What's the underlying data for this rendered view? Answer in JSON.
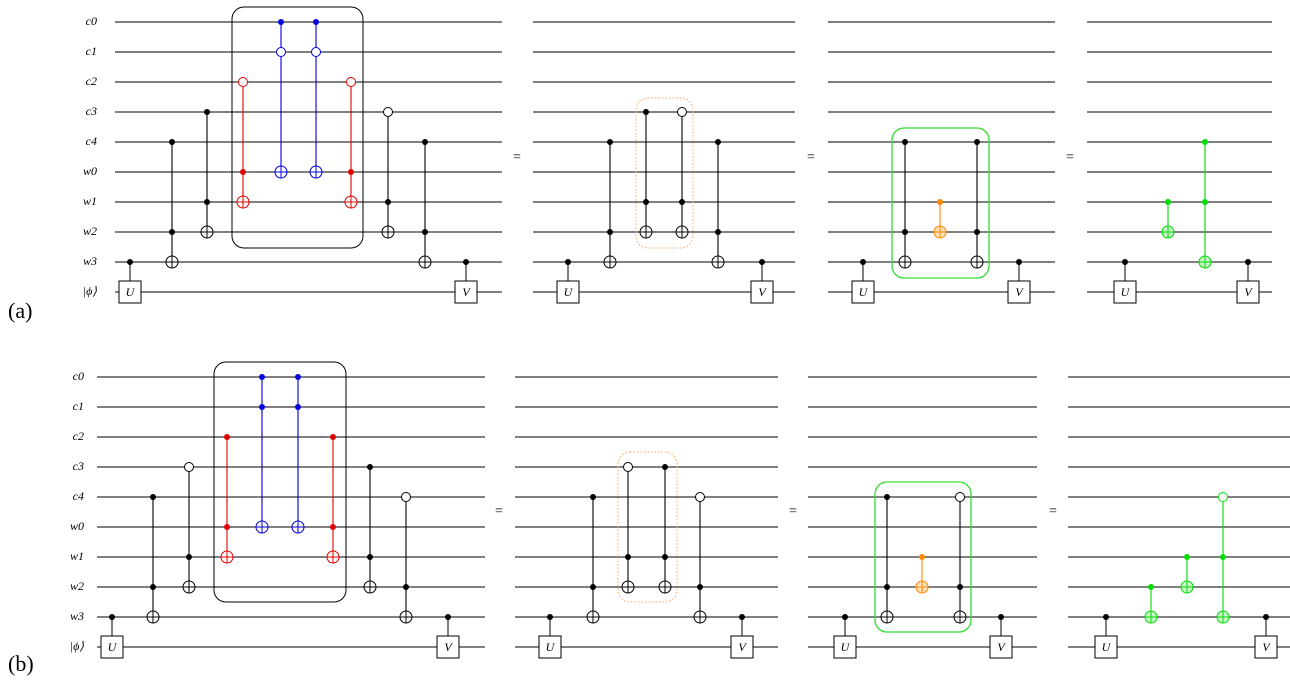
{
  "panels": [
    {
      "label": "(a)",
      "wire_labels": [
        "c0",
        "c1",
        "c2",
        "c3",
        "c4",
        "w0",
        "w1",
        "w2",
        "w3",
        "|ϕ⟩"
      ],
      "equals": [
        "=",
        "=",
        "="
      ],
      "circuits": [
        {
          "u": "U",
          "v": "V"
        },
        {
          "u": "U",
          "v": "V"
        },
        {
          "u": "U",
          "v": "V"
        },
        {
          "u": "U",
          "v": "V"
        }
      ]
    },
    {
      "label": "(b)",
      "wire_labels": [
        "c0",
        "c1",
        "c2",
        "c3",
        "c4",
        "w0",
        "w1",
        "w2",
        "w3",
        "|ϕ⟩"
      ],
      "equals": [
        "=",
        "=",
        "="
      ],
      "circuits": [
        {
          "u": "U",
          "v": "V"
        },
        {
          "u": "U",
          "v": "V"
        },
        {
          "u": "U",
          "v": "V"
        },
        {
          "u": "U",
          "v": "V"
        }
      ]
    }
  ]
}
